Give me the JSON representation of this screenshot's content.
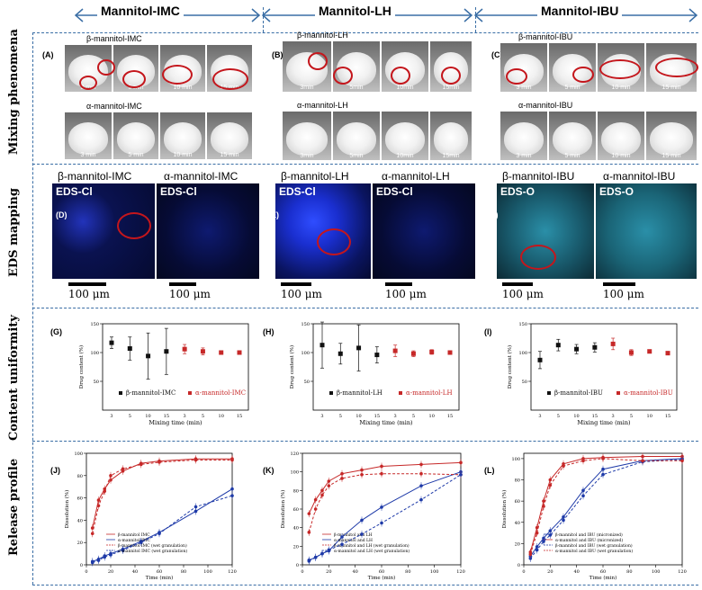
{
  "groups": {
    "imc": "Mannitol-IMC",
    "lh": "Mannitol-LH",
    "ibu": "Mannitol-IBU"
  },
  "row_labels": {
    "mixing": "Mixing phenomena",
    "eds": "EDS mapping",
    "content": "Content uniformity",
    "release": "Release profile"
  },
  "panels": {
    "A": "(A)",
    "B": "(B)",
    "C": "(C)",
    "D": "(D)",
    "E": "(E)",
    "F": "(F)",
    "G": "(G)",
    "H": "(H)",
    "I": "(I)",
    "J": "(J)",
    "K": "(K)",
    "L": "(L)"
  },
  "mixing": {
    "imc_beta": "β-mannitol-IMC",
    "imc_alpha": "α-mannitol-IMC",
    "lh_beta": "β-mannitol-LH",
    "lh_alpha": "α-mannitol-LH",
    "ibu_beta": "β-mannitol-IBU",
    "ibu_alpha": "α-mannitol-IBU",
    "times": [
      "3 min",
      "5 min",
      "10 min",
      "15 min"
    ],
    "times_lh_beta": [
      "3min",
      "5min",
      "10min",
      "15min"
    ],
    "times_lh_alpha": [
      "3min",
      "5min",
      "10min",
      "15min"
    ]
  },
  "eds": {
    "titles": [
      "β-mannitol-IMC",
      "α-mannitol-IMC",
      "β-mannitol-LH",
      "α-mannitol-LH",
      "β-mannitol-IBU",
      "α-mannitol-IBU"
    ],
    "labels": [
      "EDS-Cl",
      "EDS-Cl",
      "EDS-Cl",
      "EDS-Cl",
      "EDS-O",
      "EDS-O"
    ],
    "scale": "100 μm",
    "colors": {
      "cl": "#1e3cff",
      "o": "#3cc8dc"
    }
  },
  "chart_data": [
    {
      "id": "G",
      "type": "scatter",
      "xlabel": "Mixing time (min)",
      "ylabel": "Drug content (%)",
      "xticks": [
        "3",
        "5",
        "10",
        "15",
        "3",
        "5",
        "10",
        "15"
      ],
      "yticks": [
        "50",
        "100",
        "150"
      ],
      "ylim": [
        0,
        150
      ],
      "series": [
        {
          "name": "β-mannitol-IMC",
          "color": "#111111",
          "x": [
            1,
            2,
            3,
            4
          ],
          "values": [
            117,
            107,
            94,
            102
          ],
          "err": [
            10,
            20,
            40,
            40
          ]
        },
        {
          "name": "α-mannitol-IMC",
          "color": "#c62828",
          "x": [
            5,
            6,
            7,
            8
          ],
          "values": [
            106,
            102,
            100,
            100
          ],
          "err": [
            8,
            6,
            3,
            3
          ]
        }
      ]
    },
    {
      "id": "H",
      "type": "scatter",
      "xlabel": "Mixing time (min)",
      "ylabel": "Drug content (%)",
      "xticks": [
        "3",
        "5",
        "10",
        "15",
        "3",
        "5",
        "10",
        "15"
      ],
      "yticks": [
        "50",
        "100",
        "150"
      ],
      "ylim": [
        0,
        150
      ],
      "series": [
        {
          "name": "β-mannitol-LH",
          "color": "#111111",
          "x": [
            1,
            2,
            3,
            4
          ],
          "values": [
            113,
            98,
            108,
            96
          ],
          "err": [
            40,
            18,
            40,
            14
          ]
        },
        {
          "name": "α-mannitol-LH",
          "color": "#c62828",
          "x": [
            5,
            6,
            7,
            8
          ],
          "values": [
            103,
            98,
            101,
            100
          ],
          "err": [
            10,
            5,
            4,
            3
          ]
        }
      ]
    },
    {
      "id": "I",
      "type": "scatter",
      "xlabel": "Mixing time (min)",
      "ylabel": "Drug content (%)",
      "xticks": [
        "3",
        "5",
        "10",
        "15",
        "3",
        "5",
        "10",
        "15"
      ],
      "yticks": [
        "50",
        "100",
        "150"
      ],
      "ylim": [
        0,
        150
      ],
      "series": [
        {
          "name": "β-mannitol-IBU",
          "color": "#111111",
          "x": [
            1,
            2,
            3,
            4
          ],
          "values": [
            87,
            113,
            106,
            109
          ],
          "err": [
            15,
            10,
            8,
            8
          ]
        },
        {
          "name": "α-mannitol-IBU",
          "color": "#c62828",
          "x": [
            5,
            6,
            7,
            8
          ],
          "values": [
            115,
            100,
            102,
            99
          ],
          "err": [
            10,
            5,
            2,
            2
          ]
        }
      ]
    },
    {
      "id": "J",
      "type": "line",
      "xlabel": "Time (min)",
      "ylabel": "Dissolution (%)",
      "x": [
        5,
        10,
        15,
        20,
        30,
        45,
        60,
        90,
        120
      ],
      "xticks": [
        "0",
        "20",
        "40",
        "60",
        "80",
        "100",
        "120"
      ],
      "yticks": [
        "0",
        "20",
        "40",
        "60",
        "80",
        "100"
      ],
      "ylim": [
        0,
        100
      ],
      "series": [
        {
          "name": "β-mannitol IMC",
          "color": "#c62828",
          "dash": false,
          "values": [
            33,
            58,
            68,
            76,
            84,
            91,
            93,
            95,
            95
          ]
        },
        {
          "name": "α-mannitol IMC",
          "color": "#1e3aa8",
          "dash": false,
          "values": [
            3,
            5,
            8,
            10,
            14,
            21,
            29,
            48,
            68
          ]
        },
        {
          "name": "β-mannitol IMC (wet granulation)",
          "color": "#c62828",
          "dash": true,
          "values": [
            28,
            53,
            66,
            80,
            86,
            90,
            92,
            94,
            94
          ]
        },
        {
          "name": "α-mannitol IMC (wet granulation)",
          "color": "#1e3aa8",
          "dash": true,
          "values": [
            2,
            4,
            7,
            9,
            13,
            20,
            28,
            52,
            62
          ]
        }
      ]
    },
    {
      "id": "K",
      "type": "line",
      "xlabel": "Time (min)",
      "ylabel": "Dissolution (%)",
      "x": [
        5,
        10,
        15,
        20,
        30,
        45,
        60,
        90,
        120
      ],
      "xticks": [
        "0",
        "20",
        "40",
        "60",
        "80",
        "100",
        "120"
      ],
      "yticks": [
        "0",
        "20",
        "40",
        "60",
        "80",
        "100",
        "120"
      ],
      "ylim": [
        0,
        120
      ],
      "series": [
        {
          "name": "β-mannitol and LH",
          "color": "#c62828",
          "dash": false,
          "values": [
            55,
            70,
            80,
            90,
            98,
            102,
            106,
            108,
            110
          ]
        },
        {
          "name": "α-mannitol and LH",
          "color": "#1e3aa8",
          "dash": false,
          "values": [
            5,
            8,
            12,
            15,
            30,
            48,
            62,
            85,
            100
          ]
        },
        {
          "name": "β-mannitol and LH (wet granulation)",
          "color": "#c62828",
          "dash": true,
          "values": [
            35,
            60,
            75,
            85,
            93,
            97,
            98,
            98,
            97
          ]
        },
        {
          "name": "α-mannitol and LH (wet granulation)",
          "color": "#1e3aa8",
          "dash": true,
          "values": [
            4,
            8,
            12,
            16,
            22,
            33,
            45,
            70,
            97
          ]
        }
      ]
    },
    {
      "id": "L",
      "type": "line",
      "xlabel": "Time (min)",
      "ylabel": "Dissolution (%)",
      "x": [
        5,
        10,
        15,
        20,
        30,
        45,
        60,
        90,
        120
      ],
      "xticks": [
        "0",
        "20",
        "40",
        "60",
        "80",
        "100",
        "120"
      ],
      "yticks": [
        "0",
        "20",
        "40",
        "60",
        "80",
        "100"
      ],
      "ylim": [
        0,
        105
      ],
      "series": [
        {
          "name": "β-mannitol and IBU (micronized)",
          "color": "#1e3aa8",
          "dash": false,
          "values": [
            8,
            17,
            25,
            32,
            45,
            70,
            90,
            98,
            100
          ]
        },
        {
          "name": "α-mannitol and IBU (micronized)",
          "color": "#c62828",
          "dash": false,
          "values": [
            12,
            35,
            60,
            80,
            95,
            100,
            101,
            102,
            102
          ]
        },
        {
          "name": "β-mannitol and IBU (wet granulation)",
          "color": "#1e3aa8",
          "dash": true,
          "values": [
            6,
            14,
            22,
            28,
            42,
            65,
            85,
            97,
            99
          ]
        },
        {
          "name": "α-mannitol and IBU (wet granulation)",
          "color": "#c62828",
          "dash": true,
          "values": [
            10,
            30,
            55,
            75,
            93,
            98,
            100,
            98,
            98
          ]
        }
      ]
    }
  ]
}
